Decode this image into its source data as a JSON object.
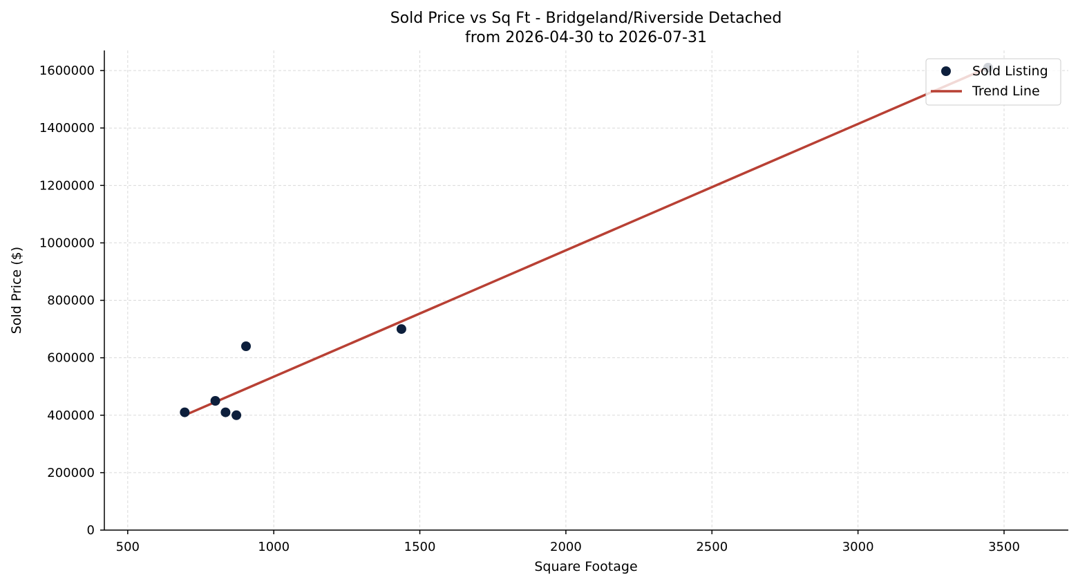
{
  "chart_data": {
    "type": "scatter",
    "title_line1": "Sold Price vs Sq Ft - Bridgeland/Riverside Detached",
    "title_line2": "from 2026-04-30 to 2026-07-31",
    "xlabel": "Square Footage",
    "ylabel": "Sold Price ($)",
    "xlim": [
      420,
      3720
    ],
    "ylim": [
      0,
      1670000
    ],
    "xticks": [
      500,
      1000,
      1500,
      2000,
      2500,
      3000,
      3500
    ],
    "yticks": [
      0,
      200000,
      400000,
      600000,
      800000,
      1000000,
      1200000,
      1400000,
      1600000
    ],
    "grid": true,
    "legend_position": "top-right",
    "series": [
      {
        "name": "Sold Listing",
        "kind": "scatter",
        "color": "#0d1f3c",
        "points": [
          {
            "x": 695,
            "y": 410000
          },
          {
            "x": 800,
            "y": 450000
          },
          {
            "x": 835,
            "y": 410000
          },
          {
            "x": 872,
            "y": 400000
          },
          {
            "x": 905,
            "y": 640000
          },
          {
            "x": 1437,
            "y": 700000
          },
          {
            "x": 3445,
            "y": 1610000
          }
        ]
      },
      {
        "name": "Trend Line",
        "kind": "line",
        "color": "#b84034",
        "points": [
          {
            "x": 695,
            "y": 400000
          },
          {
            "x": 3445,
            "y": 1610000
          }
        ]
      }
    ]
  }
}
